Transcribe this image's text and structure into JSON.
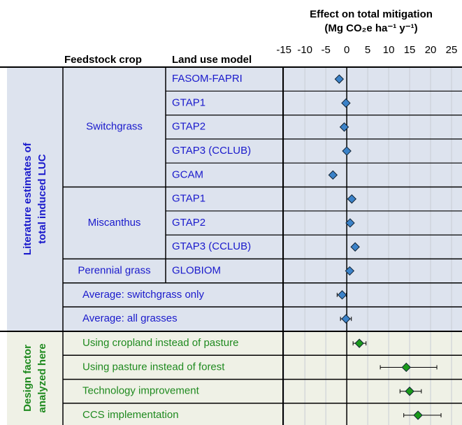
{
  "chart_data": {
    "type": "forest",
    "title": "Effect on total mitigation",
    "x_label": "(Mg CO₂e ha⁻¹ y⁻¹)",
    "column_headers": [
      "Feedstock crop",
      "Land use model"
    ],
    "xlim": [
      -15.2,
      27.5
    ],
    "xticks": [
      -15,
      -10,
      -5,
      0,
      5,
      10,
      15,
      20,
      25
    ],
    "grid": true,
    "sections": [
      {
        "label": [
          "Literature estimates of",
          "total induced LUC"
        ],
        "text_color": "#1a1acc",
        "background": "#dde3ee",
        "marker_color": "#3b82c8",
        "groups": [
          {
            "crop": "Switchgrass",
            "rows": [
              {
                "model": "FASOM-FAPRI",
                "value": -1.8
              },
              {
                "model": "GTAP1",
                "value": -0.2
              },
              {
                "model": "GTAP2",
                "value": -0.6
              },
              {
                "model": "GTAP3 (CCLUB)",
                "value": 0
              },
              {
                "model": "GCAM",
                "value": -3.3
              }
            ]
          },
          {
            "crop": "Miscanthus",
            "rows": [
              {
                "model": "GTAP1",
                "value": 1.2
              },
              {
                "model": "GTAP2",
                "value": 0.8
              },
              {
                "model": "GTAP3 (CCLUB)",
                "value": 2
              }
            ]
          },
          {
            "crop": "Perennial grass",
            "rows": [
              {
                "model": "GLOBIOM",
                "value": 0.7
              }
            ]
          },
          {
            "label": "Average:  switchgrass only",
            "value": -1.1,
            "err": [
              1.2,
              1.0
            ]
          },
          {
            "label": "Average:  all grasses",
            "value": -0.2,
            "err": [
              1.3,
              1.3
            ]
          }
        ]
      },
      {
        "label": [
          "Design factor",
          "analyzed here"
        ],
        "text_color": "#1f8a1f",
        "background": "#eff1e6",
        "marker_color": "#1a9a1a",
        "groups": [
          {
            "label": "Using cropland instead of pasture",
            "value": 3,
            "err": [
              1.5,
              1.6
            ]
          },
          {
            "label": "Using pasture instead of forest",
            "value": 14.2,
            "err": [
              6.2,
              7.3
            ]
          },
          {
            "label": "Technology improvement",
            "value": 15,
            "err": [
              2.3,
              2.8
            ]
          },
          {
            "label": "CCS implementation",
            "value": 17,
            "err": [
              3.4,
              5.5
            ]
          }
        ]
      }
    ]
  }
}
